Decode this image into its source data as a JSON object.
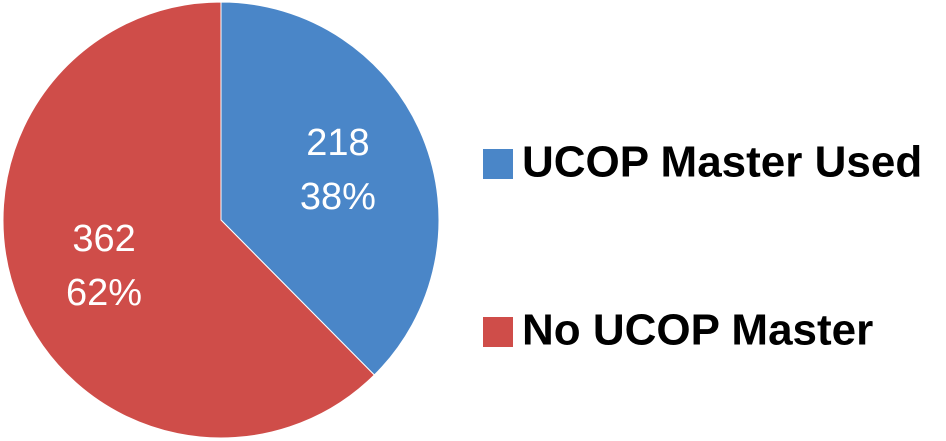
{
  "chart_data": {
    "type": "pie",
    "categories": [
      "UCOP Master Used",
      "No UCOP Master"
    ],
    "values": [
      218,
      362
    ],
    "percents": [
      38,
      62
    ],
    "percent_labels": [
      "38%",
      "62%"
    ],
    "colors": [
      "#4a86c8",
      "#cf4d49"
    ],
    "legend": "right"
  }
}
